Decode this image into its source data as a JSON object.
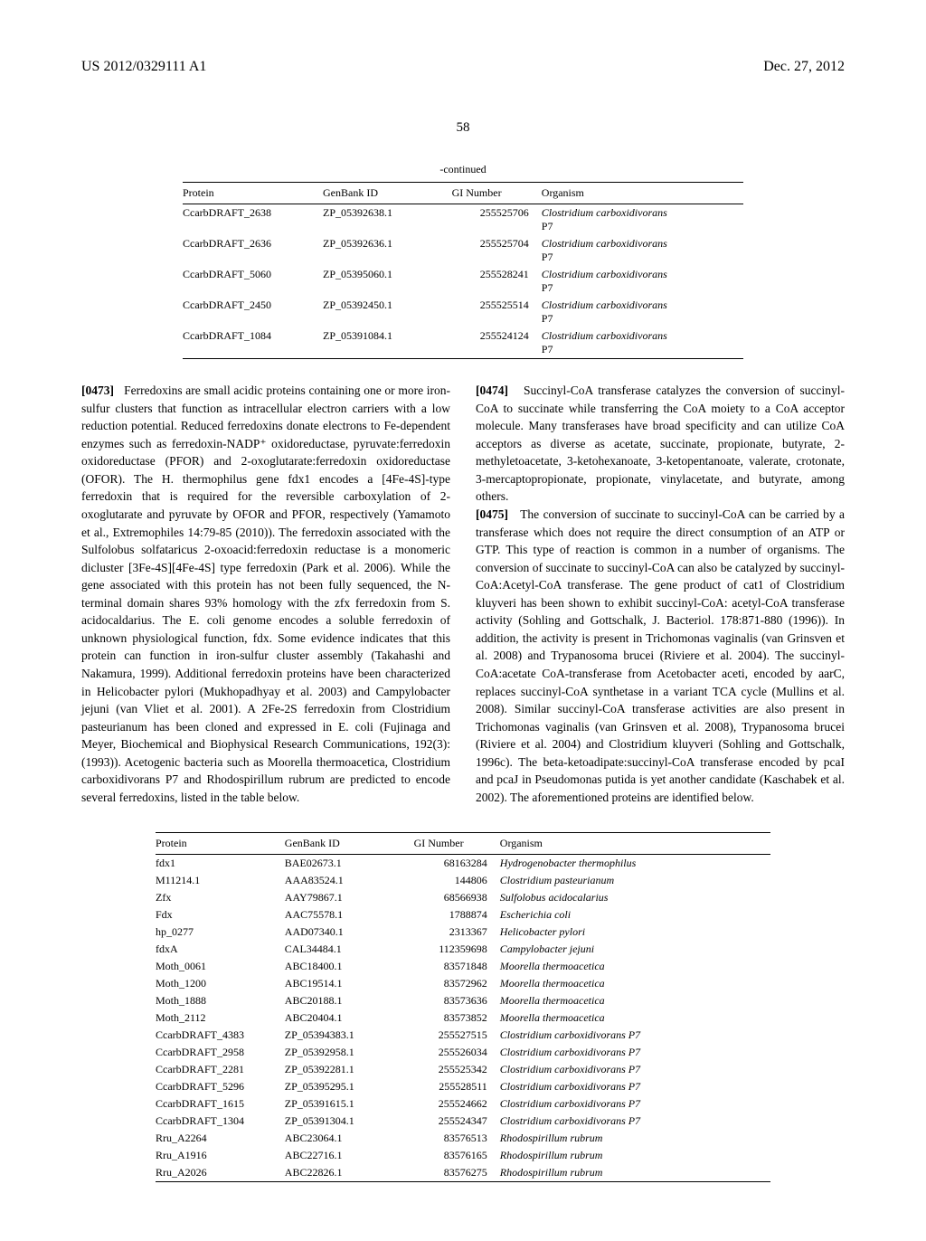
{
  "header": {
    "pub_number": "US 2012/0329111 A1",
    "pub_date": "Dec. 27, 2012",
    "page_number": "58"
  },
  "table1": {
    "continued_label": "-continued",
    "headers": [
      "Protein",
      "GenBank ID",
      "GI Number",
      "Organism"
    ],
    "rows": [
      [
        "CcarbDRAFT_2638",
        "ZP_05392638.1",
        "255525706",
        "Clostridium carboxidivorans P7"
      ],
      [
        "CcarbDRAFT_2636",
        "ZP_05392636.1",
        "255525704",
        "Clostridium carboxidivorans P7"
      ],
      [
        "CcarbDRAFT_5060",
        "ZP_05395060.1",
        "255528241",
        "Clostridium carboxidivorans P7"
      ],
      [
        "CcarbDRAFT_2450",
        "ZP_05392450.1",
        "255525514",
        "Clostridium carboxidivorans P7"
      ],
      [
        "CcarbDRAFT_1084",
        "ZP_05391084.1",
        "255524124",
        "Clostridium carboxidivorans P7"
      ]
    ]
  },
  "paragraphs": {
    "p0473_num": "[0473]",
    "p0473": "Ferredoxins are small acidic proteins containing one or more iron-sulfur clusters that function as intracellular electron carriers with a low reduction potential. Reduced ferredoxins donate electrons to Fe-dependent enzymes such as ferredoxin-NADP⁺ oxidoreductase, pyruvate:ferredoxin oxidoreductase (PFOR) and 2-oxoglutarate:ferredoxin oxidoreductase (OFOR). The H. thermophilus gene fdx1 encodes a [4Fe-4S]-type ferredoxin that is required for the reversible carboxylation of 2-oxoglutarate and pyruvate by OFOR and PFOR, respectively (Yamamoto et al., Extremophiles 14:79-85 (2010)). The ferredoxin associated with the Sulfolobus solfataricus 2-oxoacid:ferredoxin reductase is a monomeric dicluster [3Fe-4S][4Fe-4S] type ferredoxin (Park et al. 2006). While the gene associated with this protein has not been fully sequenced, the N-terminal domain shares 93% homology with the zfx ferredoxin from S. acidocaldarius. The E. coli genome encodes a soluble ferredoxin of unknown physiological function, fdx. Some evidence indicates that this protein can function in iron-sulfur cluster assembly (Takahashi and Nakamura, 1999). Additional ferredoxin proteins have been characterized in Helicobacter pylori (Mukhopadhyay et al. 2003) and Campylobacter jejuni (van Vliet et al. 2001). A 2Fe-2S ferredoxin from Clostridium pasteurianum has been cloned and expressed in E. coli (Fujinaga and Meyer, Biochemical and Biophysical Research Communications, 192(3): (1993)). Acetogenic bacteria such as Moorella thermoacetica, Clostridium carboxidivorans P7 and Rhodospirillum rubrum are predicted to encode several ferredoxins, listed in the table below.",
    "p0474_num": "[0474]",
    "p0474": "Succinyl-CoA transferase catalyzes the conversion of succinyl-CoA to succinate while transferring the CoA moiety to a CoA acceptor molecule. Many transferases have broad specificity and can utilize CoA acceptors as diverse as acetate, succinate, propionate, butyrate, 2-methyletoacetate, 3-ketohexanoate, 3-ketopentanoate, valerate, crotonate, 3-mercaptopropionate, propionate, vinylacetate, and butyrate, among others.",
    "p0475_num": "[0475]",
    "p0475": "The conversion of succinate to succinyl-CoA can be carried by a transferase which does not require the direct consumption of an ATP or GTP. This type of reaction is common in a number of organisms. The conversion of succinate to succinyl-CoA can also be catalyzed by succinyl-CoA:Acetyl-CoA transferase. The gene product of cat1 of Clostridium kluyveri has been shown to exhibit succinyl-CoA: acetyl-CoA transferase activity (Sohling and Gottschalk, J. Bacteriol. 178:871-880 (1996)). In addition, the activity is present in Trichomonas vaginalis (van Grinsven et al. 2008) and Trypanosoma brucei (Riviere et al. 2004). The succinyl-CoA:acetate CoA-transferase from Acetobacter aceti, encoded by aarC, replaces succinyl-CoA synthetase in a variant TCA cycle (Mullins et al. 2008). Similar succinyl-CoA transferase activities are also present in Trichomonas vaginalis (van Grinsven et al. 2008), Trypanosoma brucei (Riviere et al. 2004) and Clostridium kluyveri (Sohling and Gottschalk, 1996c). The beta-ketoadipate:succinyl-CoA transferase encoded by pcaI and pcaJ in Pseudomonas putida is yet another candidate (Kaschabek et al. 2002). The aforementioned proteins are identified below."
  },
  "table2": {
    "headers": [
      "Protein",
      "GenBank ID",
      "GI Number",
      "Organism"
    ],
    "rows": [
      [
        "fdx1",
        "BAE02673.1",
        "68163284",
        "Hydrogenobacter thermophilus"
      ],
      [
        "M11214.1",
        "AAA83524.1",
        "144806",
        "Clostridium pasteurianum"
      ],
      [
        "Zfx",
        "AAY79867.1",
        "68566938",
        "Sulfolobus acidocalarius"
      ],
      [
        "Fdx",
        "AAC75578.1",
        "1788874",
        "Escherichia coli"
      ],
      [
        "hp_0277",
        "AAD07340.1",
        "2313367",
        "Helicobacter pylori"
      ],
      [
        "fdxA",
        "CAL34484.1",
        "112359698",
        "Campylobacter jejuni"
      ],
      [
        "Moth_0061",
        "ABC18400.1",
        "83571848",
        "Moorella thermoacetica"
      ],
      [
        "Moth_1200",
        "ABC19514.1",
        "83572962",
        "Moorella thermoacetica"
      ],
      [
        "Moth_1888",
        "ABC20188.1",
        "83573636",
        "Moorella thermoacetica"
      ],
      [
        "Moth_2112",
        "ABC20404.1",
        "83573852",
        "Moorella thermoacetica"
      ],
      [
        "CcarbDRAFT_4383",
        "ZP_05394383.1",
        "255527515",
        "Clostridium carboxidivorans P7"
      ],
      [
        "CcarbDRAFT_2958",
        "ZP_05392958.1",
        "255526034",
        "Clostridium carboxidivorans P7"
      ],
      [
        "CcarbDRAFT_2281",
        "ZP_05392281.1",
        "255525342",
        "Clostridium carboxidivorans P7"
      ],
      [
        "CcarbDRAFT_5296",
        "ZP_05395295.1",
        "255528511",
        "Clostridium carboxidivorans P7"
      ],
      [
        "CcarbDRAFT_1615",
        "ZP_05391615.1",
        "255524662",
        "Clostridium carboxidivorans P7"
      ],
      [
        "CcarbDRAFT_1304",
        "ZP_05391304.1",
        "255524347",
        "Clostridium carboxidivorans P7"
      ],
      [
        "Rru_A2264",
        "ABC23064.1",
        "83576513",
        "Rhodospirillum rubrum"
      ],
      [
        "Rru_A1916",
        "ABC22716.1",
        "83576165",
        "Rhodospirillum rubrum"
      ],
      [
        "Rru_A2026",
        "ABC22826.1",
        "83576275",
        "Rhodospirillum rubrum"
      ]
    ]
  }
}
